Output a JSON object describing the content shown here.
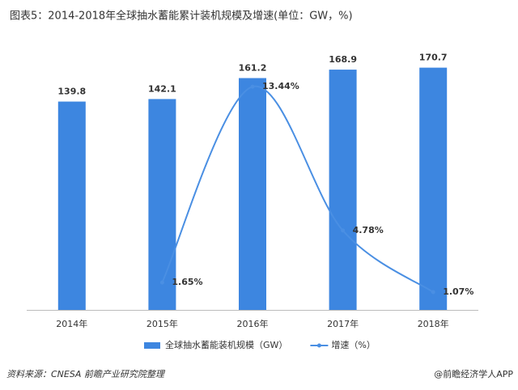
{
  "chart_data": {
    "type": "bar-line",
    "title": "图表5：2014-2018年全球抽水蓄能累计装机规模及增速(单位：GW，%)",
    "categories": [
      "2014年",
      "2015年",
      "2016年",
      "2017年",
      "2018年"
    ],
    "series": [
      {
        "name": "全球抽水蓄能装机规模（GW）",
        "color": "#3d86e0",
        "type": "bar",
        "values": [
          139.8,
          142.1,
          161.2,
          168.9,
          170.7
        ]
      },
      {
        "name": "增速（%）",
        "color": "#4a8fe3",
        "type": "line",
        "axis": "y2",
        "values": [
          null,
          1.65,
          13.44,
          4.78,
          1.07
        ],
        "value_labels": [
          null,
          "1.65%",
          "13.44%",
          "4.78%",
          "1.07%"
        ]
      }
    ],
    "ylim": [
      -50,
      180
    ],
    "y2lim": [
      0,
      15.2
    ],
    "source": "资料来源：CNESA 前瞻产业研究院整理",
    "credit": "@前瞻经济学人APP"
  }
}
